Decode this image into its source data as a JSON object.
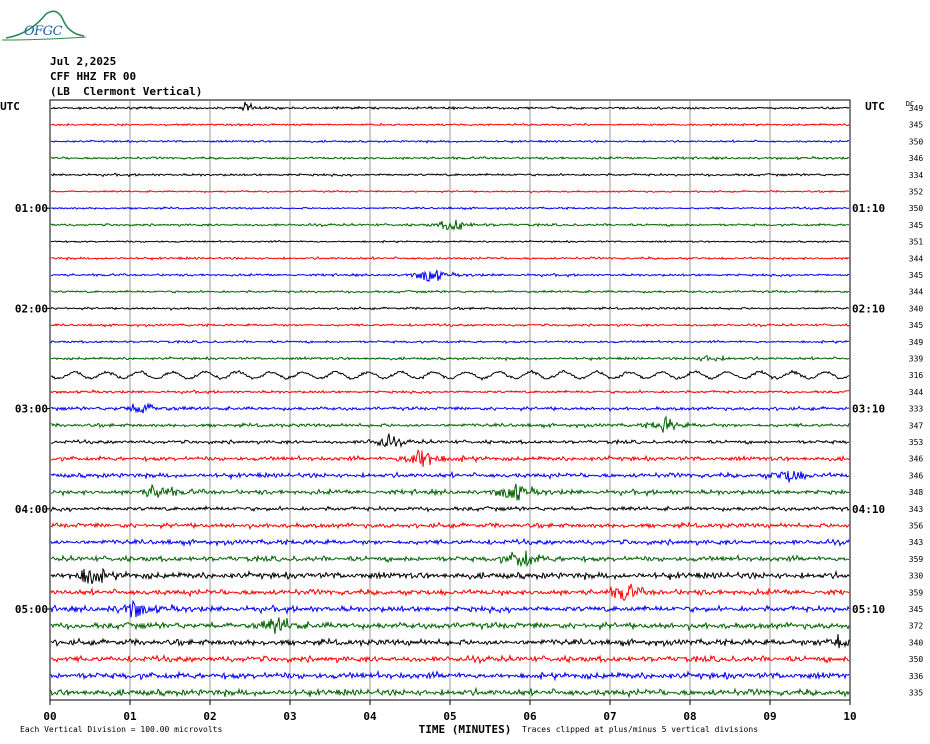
{
  "header": {
    "logo_text": "OFGC",
    "date": "Jul 2,2025",
    "station": "CFF HHZ FR 00",
    "location": "(LB  Clermont Vertical)"
  },
  "colors": {
    "cycle": [
      "#000000",
      "#ff0000",
      "#0000ff",
      "#006400"
    ],
    "grid": "#808080",
    "logo": "#1f5fa6",
    "logo_green": "#2e8b57"
  },
  "chart_data": {
    "type": "line",
    "left_axis_label": "UTC",
    "right_axis_label": "UTC",
    "dc_label": "DC",
    "xlabel": "TIME (MINUTES)",
    "xlim": [
      0,
      10
    ],
    "x_ticks": [
      "00",
      "01",
      "02",
      "03",
      "04",
      "05",
      "06",
      "07",
      "08",
      "09",
      "10"
    ],
    "left_hour_labels": [
      {
        "row": 6,
        "label": "01:00"
      },
      {
        "row": 12,
        "label": "02:00"
      },
      {
        "row": 18,
        "label": "03:00"
      },
      {
        "row": 24,
        "label": "04:00"
      },
      {
        "row": 30,
        "label": "05:00"
      }
    ],
    "right_hour_labels": [
      {
        "row": 6,
        "label": "01:10"
      },
      {
        "row": 12,
        "label": "02:10"
      },
      {
        "row": 18,
        "label": "03:10"
      },
      {
        "row": 24,
        "label": "04:10"
      },
      {
        "row": 30,
        "label": "05:10"
      }
    ],
    "dc_values": [
      "349",
      "345",
      "350",
      "346",
      "334",
      "352",
      "350",
      "345",
      "351",
      "344",
      "345",
      "344",
      "340",
      "345",
      "349",
      "339",
      "316",
      "344",
      "333",
      "347",
      "353",
      "346",
      "346",
      "348",
      "343",
      "356",
      "343",
      "359",
      "330",
      "359",
      "345",
      "372",
      "340",
      "350",
      "336",
      "335"
    ],
    "trace_activity": [
      0.8,
      0.7,
      0.7,
      0.8,
      0.8,
      0.6,
      0.7,
      0.8,
      0.6,
      0.8,
      0.8,
      0.8,
      0.8,
      0.8,
      0.8,
      0.9,
      1.0,
      0.9,
      1.2,
      1.2,
      1.2,
      1.5,
      1.6,
      1.6,
      1.4,
      1.6,
      1.7,
      1.8,
      2.2,
      1.9,
      2.0,
      2.1,
      2.1,
      2.0,
      2.2,
      2.2
    ],
    "events": [
      {
        "row": 0,
        "minute": 2.45,
        "amp": 3
      },
      {
        "row": 7,
        "minute": 5.05,
        "amp": 6
      },
      {
        "row": 10,
        "minute": 4.75,
        "amp": 7
      },
      {
        "row": 15,
        "minute": 8.25,
        "amp": 3
      },
      {
        "row": 18,
        "minute": 1.15,
        "amp": 6
      },
      {
        "row": 19,
        "minute": 7.7,
        "amp": 6
      },
      {
        "row": 20,
        "minute": 4.2,
        "amp": 6
      },
      {
        "row": 21,
        "minute": 4.65,
        "amp": 14
      },
      {
        "row": 22,
        "minute": 9.25,
        "amp": 6
      },
      {
        "row": 23,
        "minute": 1.35,
        "amp": 7
      },
      {
        "row": 23,
        "minute": 5.8,
        "amp": 9
      },
      {
        "row": 27,
        "minute": 5.9,
        "amp": 8
      },
      {
        "row": 28,
        "minute": 0.5,
        "amp": 9
      },
      {
        "row": 29,
        "minute": 7.2,
        "amp": 7
      },
      {
        "row": 30,
        "minute": 1.05,
        "amp": 8
      },
      {
        "row": 31,
        "minute": 2.85,
        "amp": 8
      },
      {
        "row": 32,
        "minute": 9.85,
        "amp": 7
      }
    ],
    "oscillation_rows": [
      16
    ],
    "footer_left": "Each Vertical Division =  100.00 microvolts",
    "footer_right": "Traces clipped at plus/minus 5 vertical divisions"
  }
}
